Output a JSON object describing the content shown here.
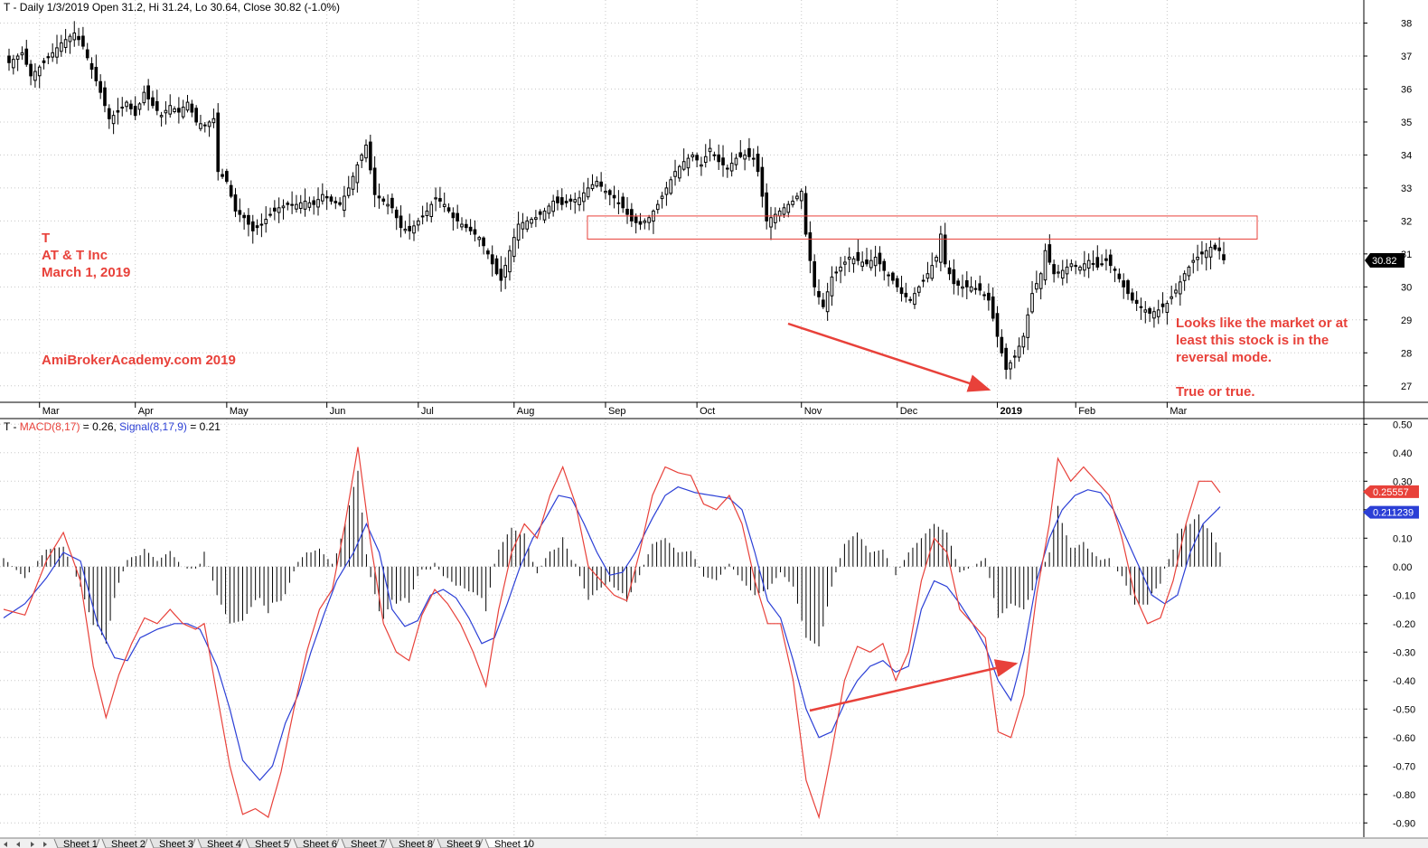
{
  "price_title": "T - Daily 1/3/2019 Open 31.2, Hi 31.24, Lo 30.64, Close 30.82 (-1.0%)",
  "macd_title": {
    "prefix": "T - ",
    "macd_label": "MACD(8,17)",
    "macd_value": " = 0.26, ",
    "signal_label": "Signal(8,17,9)",
    "signal_value": " = 0.21"
  },
  "annotations": {
    "ticker": "T",
    "company": "AT & T Inc",
    "date": "March 1, 2019",
    "site": "AmiBrokerAcademy.com  2019",
    "note_lines": [
      "Looks like the market or at",
      "least this stock is in the",
      "reversal mode."
    ],
    "note_tail": "True or true."
  },
  "last_price_tag": "30.82",
  "macd_tag": "0.25557",
  "signal_tag": "0.211239",
  "bottom_tabs": [
    "Sheet 1",
    "Sheet 2",
    "Sheet 3",
    "Sheet 4",
    "Sheet 5",
    "Sheet 6",
    "Sheet 7",
    "Sheet 8",
    "Sheet 9",
    "Sheet 10"
  ],
  "colors": {
    "macd": "#e8413a",
    "signal": "#2b3fd6",
    "annotation": "#e8413a",
    "candle": "#000000",
    "grid": "#c8c8c8"
  },
  "chart_data": [
    {
      "type": "candlestick",
      "title": "T - Daily 1/3/2019 Open 31.2, Hi 31.24, Lo 30.64, Close 30.82 (-1.0%)",
      "x_ticks": [
        "Mar",
        "Apr",
        "May",
        "Jun",
        "Jul",
        "Aug",
        "Sep",
        "Oct",
        "Nov",
        "Dec",
        "2019",
        "Feb",
        "Mar"
      ],
      "y_ticks": [
        27,
        28,
        29,
        30,
        31,
        32,
        33,
        34,
        35,
        36,
        37,
        38
      ],
      "ylim": [
        26.5,
        38.7
      ],
      "last_close": 30.82,
      "close_anchors": [
        [
          0,
          36.8
        ],
        [
          3,
          37.1
        ],
        [
          5,
          36.4
        ],
        [
          8,
          36.8
        ],
        [
          12,
          37.4
        ],
        [
          15,
          37.7
        ],
        [
          17,
          37.3
        ],
        [
          19,
          36.6
        ],
        [
          21,
          35.9
        ],
        [
          23,
          35.1
        ],
        [
          25,
          35.3
        ],
        [
          27,
          35.6
        ],
        [
          29,
          35.2
        ],
        [
          31,
          35.9
        ],
        [
          33,
          35.5
        ],
        [
          35,
          35.2
        ],
        [
          37,
          35.5
        ],
        [
          39,
          35.3
        ],
        [
          41,
          35.6
        ],
        [
          43,
          35.0
        ],
        [
          45,
          34.9
        ],
        [
          47,
          35.1
        ],
        [
          48,
          33.5
        ],
        [
          50,
          33.2
        ],
        [
          52,
          32.3
        ],
        [
          54,
          32.1
        ],
        [
          56,
          31.7
        ],
        [
          58,
          31.9
        ],
        [
          60,
          32.2
        ],
        [
          62,
          32.4
        ],
        [
          64,
          32.5
        ],
        [
          66,
          32.5
        ],
        [
          68,
          32.6
        ],
        [
          70,
          32.5
        ],
        [
          72,
          32.8
        ],
        [
          74,
          32.6
        ],
        [
          76,
          32.5
        ],
        [
          78,
          33.0
        ],
        [
          80,
          33.7
        ],
        [
          82,
          34.3
        ],
        [
          84,
          32.8
        ],
        [
          86,
          32.6
        ],
        [
          88,
          32.4
        ],
        [
          90,
          31.8
        ],
        [
          92,
          31.7
        ],
        [
          94,
          32.0
        ],
        [
          96,
          32.3
        ],
        [
          98,
          32.7
        ],
        [
          100,
          32.5
        ],
        [
          102,
          32.1
        ],
        [
          104,
          31.9
        ],
        [
          106,
          31.7
        ],
        [
          108,
          31.5
        ],
        [
          110,
          31.0
        ],
        [
          112,
          30.4
        ],
        [
          113,
          30.2
        ],
        [
          115,
          31.1
        ],
        [
          117,
          31.9
        ],
        [
          119,
          32.0
        ],
        [
          121,
          32.1
        ],
        [
          123,
          32.3
        ],
        [
          125,
          32.6
        ],
        [
          127,
          32.5
        ],
        [
          129,
          32.6
        ],
        [
          131,
          32.7
        ],
        [
          133,
          33.0
        ],
        [
          135,
          33.2
        ],
        [
          137,
          32.9
        ],
        [
          139,
          32.7
        ],
        [
          141,
          32.4
        ],
        [
          143,
          32.0
        ],
        [
          145,
          31.9
        ],
        [
          147,
          32.1
        ],
        [
          149,
          32.5
        ],
        [
          151,
          33.0
        ],
        [
          153,
          33.5
        ],
        [
          155,
          33.8
        ],
        [
          157,
          34.0
        ],
        [
          159,
          33.7
        ],
        [
          161,
          34.2
        ],
        [
          163,
          33.8
        ],
        [
          165,
          33.6
        ],
        [
          167,
          33.9
        ],
        [
          169,
          34.0
        ],
        [
          171,
          33.9
        ],
        [
          172,
          33.5
        ],
        [
          174,
          32.0
        ],
        [
          176,
          32.2
        ],
        [
          178,
          32.4
        ],
        [
          180,
          32.6
        ],
        [
          182,
          32.9
        ],
        [
          183,
          31.6
        ],
        [
          185,
          30.0
        ],
        [
          187,
          29.4
        ],
        [
          189,
          30.3
        ],
        [
          191,
          30.6
        ],
        [
          193,
          30.9
        ],
        [
          195,
          30.8
        ],
        [
          197,
          30.7
        ],
        [
          199,
          30.9
        ],
        [
          201,
          30.5
        ],
        [
          203,
          30.2
        ],
        [
          205,
          29.8
        ],
        [
          207,
          29.6
        ],
        [
          209,
          30.0
        ],
        [
          211,
          30.4
        ],
        [
          213,
          30.9
        ],
        [
          214,
          31.6
        ],
        [
          215,
          30.7
        ],
        [
          217,
          30.1
        ],
        [
          219,
          30.0
        ],
        [
          221,
          30.0
        ],
        [
          223,
          29.9
        ],
        [
          225,
          29.6
        ],
        [
          227,
          28.5
        ],
        [
          229,
          27.5
        ],
        [
          231,
          27.9
        ],
        [
          233,
          28.5
        ],
        [
          235,
          29.8
        ],
        [
          237,
          30.4
        ],
        [
          238,
          31.1
        ],
        [
          240,
          30.4
        ],
        [
          242,
          30.5
        ],
        [
          244,
          30.7
        ],
        [
          246,
          30.6
        ],
        [
          248,
          30.8
        ],
        [
          250,
          30.6
        ],
        [
          252,
          30.8
        ],
        [
          254,
          30.5
        ],
        [
          256,
          30.0
        ],
        [
          258,
          29.6
        ],
        [
          260,
          29.4
        ],
        [
          262,
          29.2
        ],
        [
          264,
          29.3
        ],
        [
          266,
          29.5
        ],
        [
          268,
          29.9
        ],
        [
          270,
          30.4
        ],
        [
          272,
          30.8
        ],
        [
          274,
          31.0
        ],
        [
          276,
          31.2
        ],
        [
          278,
          31.1
        ],
        [
          279,
          30.82
        ]
      ],
      "annotation_box": {
        "x_from": "Aug",
        "x_to": "Mar",
        "y_range": [
          31.45,
          32.15
        ]
      },
      "arrow": {
        "from": "late Oct",
        "to": "late Dec",
        "direction": "down"
      }
    },
    {
      "type": "line+histogram",
      "title": "T - MACD(8,17) = 0.26, Signal(8,17,9) = 0.21",
      "series": [
        {
          "name": "MACD(8,17)",
          "last": 0.26
        },
        {
          "name": "Signal(8,17,9)",
          "last": 0.21
        }
      ],
      "y_ticks": [
        0.5,
        0.4,
        0.3,
        0.2,
        0.1,
        0.0,
        -0.1,
        -0.2,
        -0.3,
        -0.4,
        -0.5,
        -0.6,
        -0.7,
        -0.8,
        -0.9
      ],
      "ylim": [
        -0.95,
        0.52
      ],
      "macd_anchors": [
        [
          0,
          -0.15
        ],
        [
          5,
          -0.17
        ],
        [
          10,
          0.02
        ],
        [
          14,
          0.12
        ],
        [
          18,
          -0.05
        ],
        [
          21,
          -0.35
        ],
        [
          24,
          -0.53
        ],
        [
          27,
          -0.38
        ],
        [
          30,
          -0.27
        ],
        [
          33,
          -0.18
        ],
        [
          36,
          -0.2
        ],
        [
          39,
          -0.15
        ],
        [
          42,
          -0.2
        ],
        [
          45,
          -0.22
        ],
        [
          47,
          -0.2
        ],
        [
          50,
          -0.45
        ],
        [
          53,
          -0.7
        ],
        [
          56,
          -0.87
        ],
        [
          59,
          -0.85
        ],
        [
          62,
          -0.88
        ],
        [
          65,
          -0.72
        ],
        [
          68,
          -0.5
        ],
        [
          71,
          -0.3
        ],
        [
          74,
          -0.15
        ],
        [
          77,
          -0.08
        ],
        [
          80,
          0.15
        ],
        [
          83,
          0.42
        ],
        [
          86,
          0.08
        ],
        [
          89,
          -0.2
        ],
        [
          92,
          -0.3
        ],
        [
          95,
          -0.33
        ],
        [
          98,
          -0.17
        ],
        [
          101,
          -0.08
        ],
        [
          104,
          -0.13
        ],
        [
          107,
          -0.2
        ],
        [
          110,
          -0.3
        ],
        [
          113,
          -0.42
        ],
        [
          116,
          -0.15
        ],
        [
          119,
          0.05
        ],
        [
          122,
          0.15
        ],
        [
          125,
          0.1
        ],
        [
          128,
          0.25
        ],
        [
          131,
          0.35
        ],
        [
          134,
          0.22
        ],
        [
          137,
          0.0
        ],
        [
          140,
          -0.05
        ],
        [
          143,
          -0.1
        ],
        [
          146,
          -0.12
        ],
        [
          149,
          0.05
        ],
        [
          152,
          0.25
        ],
        [
          155,
          0.35
        ],
        [
          158,
          0.33
        ],
        [
          161,
          0.32
        ],
        [
          164,
          0.22
        ],
        [
          167,
          0.2
        ],
        [
          170,
          0.25
        ],
        [
          173,
          0.15
        ],
        [
          176,
          -0.05
        ],
        [
          179,
          -0.2
        ],
        [
          182,
          -0.2
        ],
        [
          185,
          -0.4
        ],
        [
          188,
          -0.75
        ],
        [
          191,
          -0.88
        ],
        [
          194,
          -0.65
        ],
        [
          197,
          -0.4
        ],
        [
          200,
          -0.28
        ],
        [
          203,
          -0.3
        ],
        [
          206,
          -0.27
        ],
        [
          209,
          -0.4
        ],
        [
          212,
          -0.3
        ],
        [
          215,
          -0.05
        ],
        [
          218,
          0.1
        ],
        [
          221,
          0.05
        ],
        [
          224,
          -0.15
        ],
        [
          227,
          -0.2
        ],
        [
          230,
          -0.25
        ],
        [
          233,
          -0.58
        ],
        [
          236,
          -0.6
        ],
        [
          239,
          -0.45
        ],
        [
          242,
          -0.1
        ],
        [
          245,
          0.15
        ],
        [
          247,
          0.38
        ],
        [
          250,
          0.3
        ],
        [
          253,
          0.35
        ],
        [
          256,
          0.3
        ],
        [
          259,
          0.25
        ],
        [
          262,
          0.1
        ],
        [
          265,
          -0.1
        ],
        [
          268,
          -0.2
        ],
        [
          271,
          -0.18
        ],
        [
          274,
          -0.05
        ],
        [
          277,
          0.15
        ],
        [
          280,
          0.3
        ],
        [
          283,
          0.3
        ],
        [
          285,
          0.26
        ]
      ],
      "signal_anchors": [
        [
          0,
          -0.18
        ],
        [
          5,
          -0.13
        ],
        [
          10,
          -0.04
        ],
        [
          14,
          0.05
        ],
        [
          18,
          0.02
        ],
        [
          22,
          -0.2
        ],
        [
          26,
          -0.32
        ],
        [
          29,
          -0.33
        ],
        [
          32,
          -0.25
        ],
        [
          36,
          -0.22
        ],
        [
          40,
          -0.2
        ],
        [
          43,
          -0.2
        ],
        [
          46,
          -0.22
        ],
        [
          50,
          -0.35
        ],
        [
          53,
          -0.5
        ],
        [
          56,
          -0.68
        ],
        [
          60,
          -0.75
        ],
        [
          63,
          -0.7
        ],
        [
          66,
          -0.55
        ],
        [
          69,
          -0.45
        ],
        [
          72,
          -0.3
        ],
        [
          75,
          -0.17
        ],
        [
          78,
          -0.05
        ],
        [
          82,
          0.05
        ],
        [
          85,
          0.15
        ],
        [
          88,
          0.05
        ],
        [
          91,
          -0.15
        ],
        [
          94,
          -0.21
        ],
        [
          97,
          -0.19
        ],
        [
          100,
          -0.1
        ],
        [
          103,
          -0.08
        ],
        [
          106,
          -0.11
        ],
        [
          109,
          -0.18
        ],
        [
          112,
          -0.27
        ],
        [
          115,
          -0.25
        ],
        [
          118,
          -0.13
        ],
        [
          121,
          0.0
        ],
        [
          124,
          0.1
        ],
        [
          127,
          0.17
        ],
        [
          130,
          0.25
        ],
        [
          133,
          0.24
        ],
        [
          136,
          0.15
        ],
        [
          139,
          0.05
        ],
        [
          142,
          -0.03
        ],
        [
          145,
          -0.02
        ],
        [
          148,
          0.05
        ],
        [
          152,
          0.17
        ],
        [
          155,
          0.25
        ],
        [
          158,
          0.28
        ],
        [
          162,
          0.26
        ],
        [
          166,
          0.25
        ],
        [
          170,
          0.24
        ],
        [
          173,
          0.2
        ],
        [
          176,
          0.05
        ],
        [
          179,
          -0.12
        ],
        [
          182,
          -0.18
        ],
        [
          185,
          -0.33
        ],
        [
          188,
          -0.5
        ],
        [
          191,
          -0.6
        ],
        [
          194,
          -0.58
        ],
        [
          197,
          -0.48
        ],
        [
          200,
          -0.4
        ],
        [
          203,
          -0.35
        ],
        [
          206,
          -0.33
        ],
        [
          209,
          -0.37
        ],
        [
          212,
          -0.35
        ],
        [
          215,
          -0.15
        ],
        [
          218,
          -0.05
        ],
        [
          221,
          -0.07
        ],
        [
          224,
          -0.13
        ],
        [
          227,
          -0.2
        ],
        [
          230,
          -0.28
        ],
        [
          233,
          -0.4
        ],
        [
          236,
          -0.47
        ],
        [
          239,
          -0.3
        ],
        [
          242,
          -0.05
        ],
        [
          245,
          0.1
        ],
        [
          248,
          0.2
        ],
        [
          251,
          0.25
        ],
        [
          254,
          0.27
        ],
        [
          257,
          0.26
        ],
        [
          260,
          0.2
        ],
        [
          263,
          0.1
        ],
        [
          266,
          0.0
        ],
        [
          269,
          -0.1
        ],
        [
          272,
          -0.13
        ],
        [
          275,
          -0.1
        ],
        [
          278,
          0.05
        ],
        [
          281,
          0.15
        ],
        [
          285,
          0.21
        ]
      ],
      "arrow": {
        "from": "early Nov",
        "to": "late Dec",
        "direction": "up"
      }
    }
  ]
}
